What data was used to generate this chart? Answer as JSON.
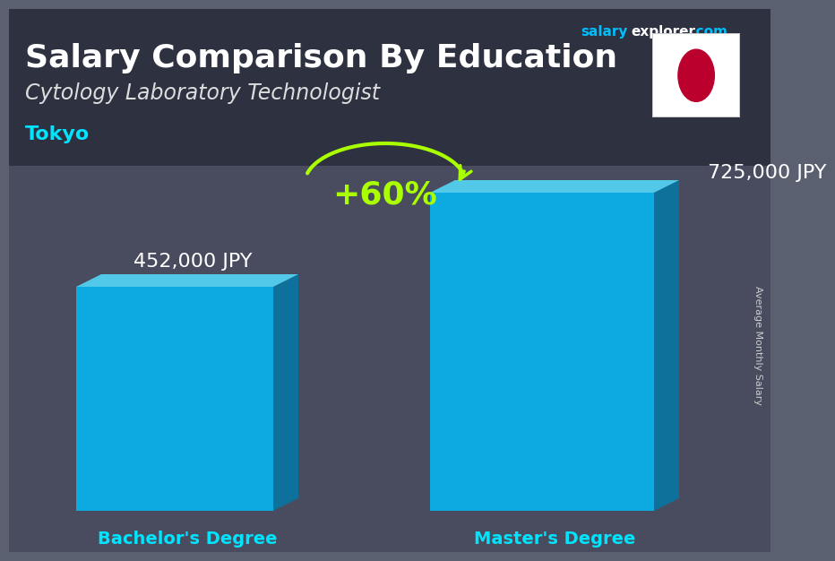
{
  "title": "Salary Comparison By Education",
  "subtitle": "Cytology Laboratory Technologist",
  "city": "Tokyo",
  "categories": [
    "Bachelor's Degree",
    "Master's Degree"
  ],
  "values": [
    452000,
    725000
  ],
  "value_labels": [
    "452,000 JPY",
    "725,000 JPY"
  ],
  "pct_change": "+60%",
  "bar_color_front": "#00BFFF",
  "bar_color_side": "#007AAA",
  "bar_color_top": "#55DDFF",
  "bar_alpha": 0.82,
  "ylabel": "Average Monthly Salary",
  "bg_color": "#5a6070",
  "overlay_color": "#3a3d50",
  "title_color": "#ffffff",
  "subtitle_color": "#dddddd",
  "city_color": "#00e5ff",
  "xlabel_color": "#00e5ff",
  "pct_color": "#aaff00",
  "salary_color": "#ffffff",
  "site_salary_color": "#00bfff",
  "site_rest_color": "#ffffff",
  "ylabel_color": "#cccccc",
  "flag_border": "#cccccc"
}
